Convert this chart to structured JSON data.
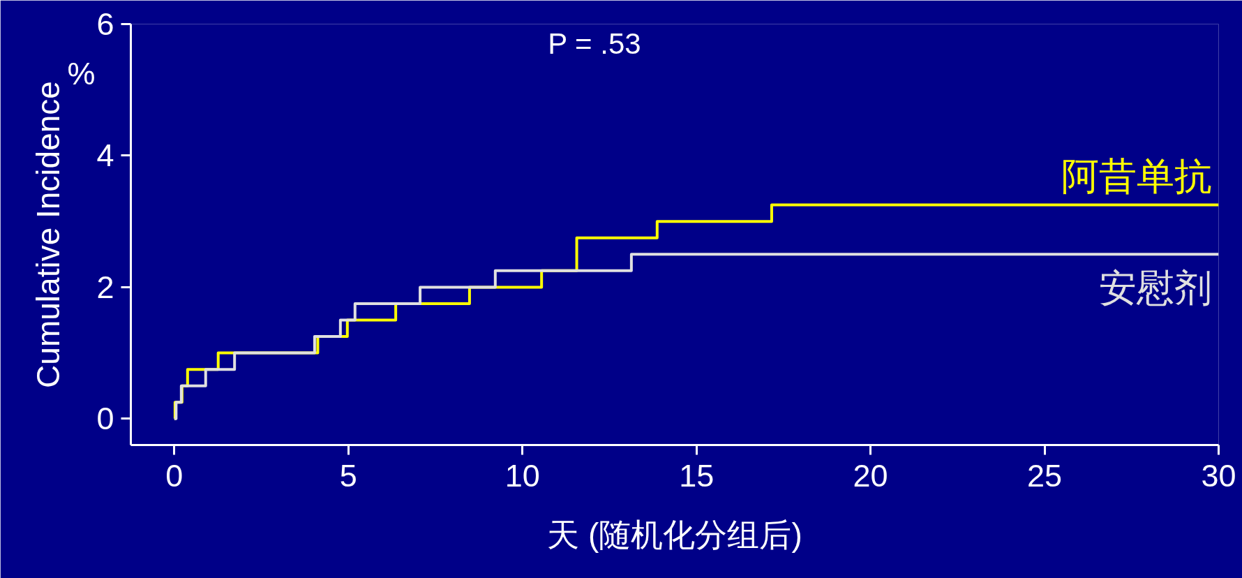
{
  "chart_data": {
    "type": "step",
    "ylabel": "Cumulative Incidence",
    "xlabel": "天 (随机化分组后)",
    "annotations": [
      "P = .53",
      "%"
    ],
    "xlim": [
      -1.25,
      30
    ],
    "ylim": [
      -0.4,
      6
    ],
    "xticks": [
      0,
      5,
      10,
      15,
      20,
      25,
      30
    ],
    "yticks": [
      0,
      2,
      4,
      6
    ],
    "grid": false,
    "series": [
      {
        "name": "阿昔单抗",
        "color": "#ffff00",
        "x": [
          0,
          0.02,
          0.22,
          0.38,
          1.26,
          4.12,
          4.97,
          6.36,
          8.48,
          10.55,
          11.56,
          13.87,
          17.16,
          30
        ],
        "values": [
          0,
          0.25,
          0.5,
          0.75,
          1.0,
          1.25,
          1.5,
          1.75,
          2.0,
          2.25,
          2.75,
          3.0,
          3.25,
          3.25
        ]
      },
      {
        "name": "安慰剂",
        "color": "#e0e0e0",
        "x": [
          0,
          0.05,
          0.2,
          0.9,
          1.73,
          4.03,
          4.77,
          5.19,
          7.06,
          9.22,
          13.13,
          30
        ],
        "values": [
          0,
          0.25,
          0.5,
          0.75,
          1.0,
          1.25,
          1.5,
          1.75,
          2.0,
          2.25,
          2.5,
          2.5
        ]
      }
    ]
  }
}
